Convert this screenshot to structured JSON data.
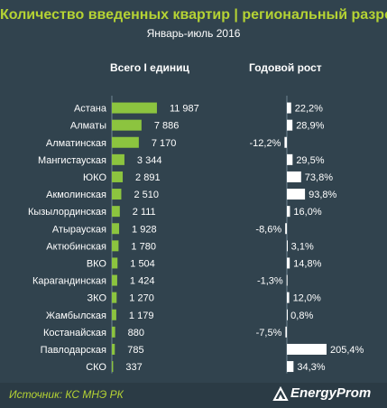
{
  "title": "Количество введенных квартир | региональный разрез",
  "subtitle": "Январь-июль 2016",
  "colors": {
    "background": "#31434e",
    "accent": "#b5d334",
    "bar_units": "#8cc43f",
    "bar_growth": "#ffffff",
    "axis": "#6f8591"
  },
  "column_headers": {
    "units": "Всего I единиц",
    "growth": "Годовой рост"
  },
  "chart_data": {
    "type": "bar",
    "title": "Количество введенных квартир | региональный разрез",
    "subtitle": "Январь-июль 2016",
    "categories": [
      "Астана",
      "Алматы",
      "Алматинская",
      "Мангистауская",
      "ЮКО",
      "Акмолинская",
      "Кызылординская",
      "Атырауская",
      "Актюбинская",
      "ВКО",
      "Карагандинская",
      "ЗКО",
      "Жамбылская",
      "Костанайская",
      "Павлодарская",
      "СКО"
    ],
    "series": [
      {
        "name": "Всего I единиц",
        "values": [
          11987,
          7886,
          7170,
          3344,
          2891,
          2510,
          2111,
          1928,
          1780,
          1504,
          1424,
          1270,
          1179,
          880,
          785,
          337
        ],
        "labels": [
          "11 987",
          "7 886",
          "7 170",
          "3 344",
          "2 891",
          "2 510",
          "2 111",
          "1 928",
          "1 780",
          "1 504",
          "1 424",
          "1 270",
          "1 179",
          "880",
          "785",
          "337"
        ]
      },
      {
        "name": "Годовой рост",
        "values": [
          22.2,
          28.9,
          -12.2,
          29.5,
          73.8,
          93.8,
          16.0,
          -8.6,
          3.1,
          14.8,
          -1.3,
          12.0,
          0.8,
          -7.5,
          205.4,
          34.3
        ],
        "labels": [
          "22,2%",
          "28,9%",
          "-12,2%",
          "29,5%",
          "73,8%",
          "93,8%",
          "16,0%",
          "-8,6%",
          "3,1%",
          "14,8%",
          "-1,3%",
          "12,0%",
          "0,8%",
          "-7,5%",
          "205,4%",
          "34,3%"
        ]
      }
    ]
  },
  "source": "Источник: КС МНЭ РК",
  "logo": "EnergyProm"
}
